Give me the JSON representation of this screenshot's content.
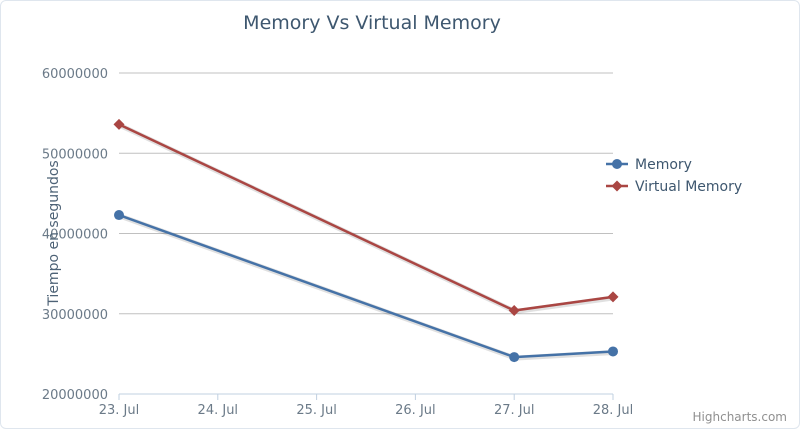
{
  "chart_data": {
    "type": "line",
    "title": "Memory Vs Virtual Memory",
    "ylabel": "Tiempo en segundos",
    "xlabel": "",
    "categories": [
      "23. Jul",
      "24. Jul",
      "25. Jul",
      "26. Jul",
      "27. Jul",
      "28. Jul"
    ],
    "x_days": [
      23,
      24,
      25,
      26,
      27,
      28
    ],
    "ylim": [
      20000000,
      60000000
    ],
    "yticks": [
      "20000000",
      "30000000",
      "40000000",
      "50000000",
      "60000000"
    ],
    "ytick_values": [
      20000000,
      30000000,
      40000000,
      50000000,
      60000000
    ],
    "grid": true,
    "legend_position": "right",
    "series": [
      {
        "name": "Memory",
        "color": "#4572a7",
        "marker": "circle",
        "points": [
          {
            "x": 23,
            "y": 42300000
          },
          {
            "x": 27,
            "y": 24600000
          },
          {
            "x": 28,
            "y": 25300000
          }
        ]
      },
      {
        "name": "Virtual Memory",
        "color": "#aa4643",
        "marker": "diamond",
        "points": [
          {
            "x": 23,
            "y": 53600000
          },
          {
            "x": 27,
            "y": 30400000
          },
          {
            "x": 28,
            "y": 32100000
          }
        ]
      }
    ]
  },
  "credits": "Highcharts.com"
}
